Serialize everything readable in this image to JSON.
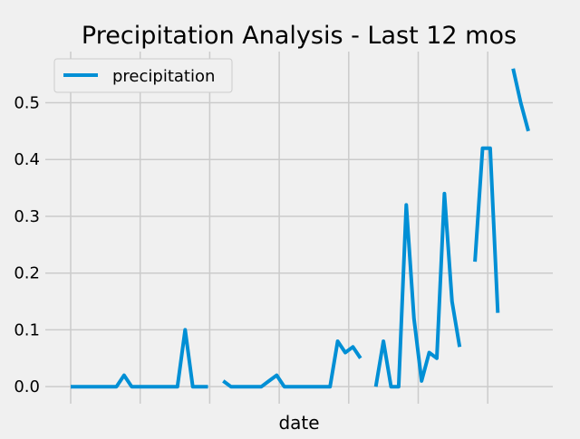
{
  "chart_data": {
    "type": "line",
    "title": "Precipitation Analysis - Last 12 mos",
    "xlabel": "date",
    "ylabel": "",
    "ylim": [
      -0.03,
      0.59
    ],
    "yticks": [
      "0.0",
      "0.1",
      "0.2",
      "0.3",
      "0.4",
      "0.5"
    ],
    "ytick_values": [
      0.0,
      0.1,
      0.2,
      0.3,
      0.4,
      0.5
    ],
    "grid": true,
    "legend_position": "upper-left",
    "colors": {
      "series": "#008fd5",
      "background": "#f0f0f0",
      "grid": "#cbcbcb",
      "text": "#000000"
    },
    "series": [
      {
        "name": "precipitation",
        "segments": [
          [
            0,
            0,
            0,
            0,
            0,
            0,
            0,
            0.02,
            0,
            0,
            0,
            0,
            0,
            0,
            0,
            0.1,
            0,
            0,
            0
          ],
          [
            0.01,
            0,
            0,
            0,
            0,
            0,
            0.01,
            0.02,
            0,
            0,
            0,
            0,
            0,
            0,
            0,
            0.08,
            0.06,
            0.07,
            0.05
          ],
          [
            0,
            0.08,
            0,
            0,
            0.32,
            0.12,
            0.01,
            0.06,
            0.05,
            0.34,
            0.15,
            0.07
          ],
          [
            0.22,
            0.42,
            0.42,
            0.13
          ],
          [
            0.56,
            0.5,
            0.45
          ]
        ]
      }
    ]
  }
}
